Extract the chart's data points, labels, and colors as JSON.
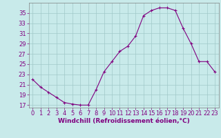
{
  "x": [
    0,
    1,
    2,
    3,
    4,
    5,
    6,
    7,
    8,
    9,
    10,
    11,
    12,
    13,
    14,
    15,
    16,
    17,
    18,
    19,
    20,
    21,
    22,
    23
  ],
  "y": [
    22,
    20.5,
    19.5,
    18.5,
    17.5,
    17.2,
    17.0,
    17.0,
    20.0,
    23.5,
    25.5,
    27.5,
    28.5,
    30.5,
    34.5,
    35.5,
    36.0,
    36.0,
    35.5,
    32.0,
    29.0,
    25.5,
    25.5,
    23.5
  ],
  "line_color": "#800080",
  "marker": "+",
  "marker_size": 3,
  "background_color": "#c8eaea",
  "grid_color": "#a0c8c8",
  "xlabel": "Windchill (Refroidissement éolien,°C)",
  "ylabel": "",
  "title": "",
  "xlim": [
    -0.5,
    23.5
  ],
  "ylim": [
    16.5,
    37
  ],
  "yticks": [
    17,
    19,
    21,
    23,
    25,
    27,
    29,
    31,
    33,
    35
  ],
  "xticks": [
    0,
    1,
    2,
    3,
    4,
    5,
    6,
    7,
    8,
    9,
    10,
    11,
    12,
    13,
    14,
    15,
    16,
    17,
    18,
    19,
    20,
    21,
    22,
    23
  ],
  "tick_color": "#800080",
  "xlabel_fontsize": 6.5,
  "tick_fontsize": 6,
  "spine_color": "#808080",
  "line_width": 0.8,
  "marker_edge_width": 0.8
}
